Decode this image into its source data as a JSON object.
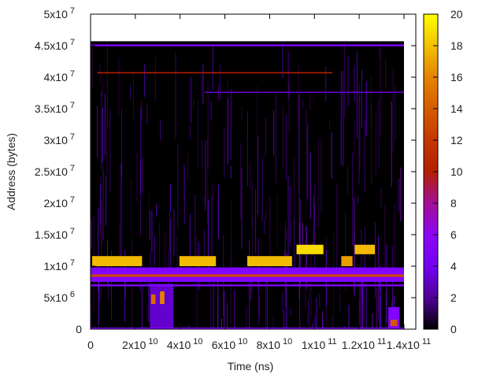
{
  "chart_data": {
    "type": "heatmap",
    "title": "",
    "xlabel": "Time (ns)",
    "ylabel": "Address (bytes)",
    "xlim": [
      0,
      145000000000.0
    ],
    "ylim": [
      0,
      50000000.0
    ],
    "x_ticks": [
      {
        "v": 0,
        "m": "0",
        "e": ""
      },
      {
        "v": 20000000000.0,
        "m": "2x10",
        "e": "10"
      },
      {
        "v": 40000000000.0,
        "m": "4x10",
        "e": "10"
      },
      {
        "v": 60000000000.0,
        "m": "6x10",
        "e": "10"
      },
      {
        "v": 80000000000.0,
        "m": "8x10",
        "e": "10"
      },
      {
        "v": 100000000000.0,
        "m": "1x10",
        "e": "11"
      },
      {
        "v": 120000000000.0,
        "m": "1.2x10",
        "e": "11"
      },
      {
        "v": 140000000000.0,
        "m": "1.4x10",
        "e": "11"
      }
    ],
    "y_ticks": [
      {
        "v": 0,
        "m": "0",
        "e": ""
      },
      {
        "v": 5000000.0,
        "m": "5x10",
        "e": "6"
      },
      {
        "v": 10000000.0,
        "m": "1x10",
        "e": "7"
      },
      {
        "v": 15000000.0,
        "m": "1.5x10",
        "e": "7"
      },
      {
        "v": 20000000.0,
        "m": "2x10",
        "e": "7"
      },
      {
        "v": 25000000.0,
        "m": "2.5x10",
        "e": "7"
      },
      {
        "v": 30000000.0,
        "m": "3x10",
        "e": "7"
      },
      {
        "v": 35000000.0,
        "m": "3.5x10",
        "e": "7"
      },
      {
        "v": 40000000.0,
        "m": "4x10",
        "e": "7"
      },
      {
        "v": 45000000.0,
        "m": "4.5x10",
        "e": "7"
      },
      {
        "v": 50000000.0,
        "m": "5x10",
        "e": "7"
      }
    ],
    "colorbar": {
      "range": [
        0,
        20
      ],
      "ticks": [
        "0",
        "2",
        "4",
        "6",
        "8",
        "10",
        "12",
        "14",
        "16",
        "18",
        "20"
      ]
    },
    "data_extent": {
      "x": [
        0,
        140000000000.0
      ],
      "y": [
        0,
        45700000.0
      ]
    },
    "regions": [
      {
        "x": [
          700000000.0,
          23000000000.0
        ],
        "y": [
          10000000.0,
          11600000.0
        ],
        "v": 18
      },
      {
        "x": [
          39700000000.0,
          56000000000.0
        ],
        "y": [
          10000000.0,
          11600000.0
        ],
        "v": 18
      },
      {
        "x": [
          70000000000.0,
          90000000000.0
        ],
        "y": [
          10000000.0,
          11600000.0
        ],
        "v": 18
      },
      {
        "x": [
          92000000000.0,
          104000000000.0
        ],
        "y": [
          11900000.0,
          13400000.0
        ],
        "v": 19
      },
      {
        "x": [
          112000000000.0,
          117000000000.0
        ],
        "y": [
          10000000.0,
          11600000.0
        ],
        "v": 17
      },
      {
        "x": [
          118000000000.0,
          127000000000.0
        ],
        "y": [
          11900000.0,
          13400000.0
        ],
        "v": 18
      },
      {
        "x": [
          0,
          140000000000.0
        ],
        "y": [
          7500000.0,
          9800000.0
        ],
        "v": 5
      },
      {
        "x": [
          0,
          140000000000.0
        ],
        "y": [
          8300000.0,
          8700000.0
        ],
        "v": 13
      },
      {
        "x": [
          26500000000.0,
          37000000000.0
        ],
        "y": [
          0,
          7200000.0
        ],
        "v": 3
      },
      {
        "x": [
          27000000000.0,
          29000000000.0
        ],
        "y": [
          4000000.0,
          5500000.0
        ],
        "v": 15
      },
      {
        "x": [
          31000000000.0,
          33000000000.0
        ],
        "y": [
          4000000.0,
          6000000.0
        ],
        "v": 16
      },
      {
        "x": [
          133000000000.0,
          138000000000.0
        ],
        "y": [
          0,
          3500000.0
        ],
        "v": 5
      },
      {
        "x": [
          134000000000.0,
          137000000000.0
        ],
        "y": [
          500000.0,
          1500000.0
        ],
        "v": 14
      },
      {
        "x": [
          0,
          140000000000.0
        ],
        "y": [
          6800000.0,
          7100000.0
        ],
        "v": 5
      },
      {
        "x": [
          0,
          140000000000.0
        ],
        "y": [
          0,
          250000.0
        ],
        "v": 5
      },
      {
        "x": [
          0,
          140000000000.0
        ],
        "y": [
          44900000.0,
          45200000.0
        ],
        "v": 5
      },
      {
        "x": [
          3000000000.0,
          108000000000.0
        ],
        "y": [
          40600000.0,
          40800000.0
        ],
        "v": 10
      },
      {
        "x": [
          51000000000.0,
          140000000000.0
        ],
        "y": [
          37500000.0,
          37700000.0
        ],
        "v": 3
      }
    ]
  }
}
